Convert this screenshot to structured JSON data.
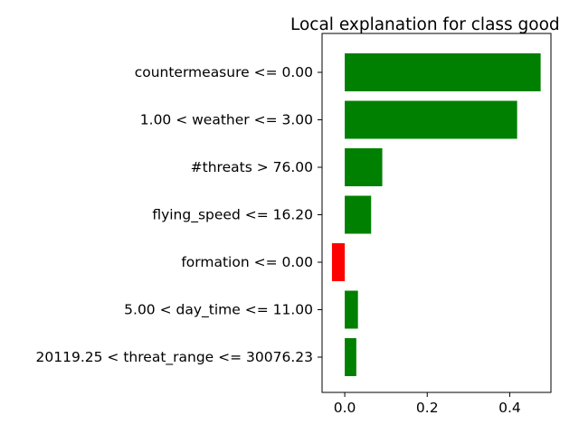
{
  "chart_data": {
    "type": "bar",
    "orientation": "horizontal",
    "title": "Local explanation for class good",
    "xlabel": "",
    "ylabel": "",
    "xlim": [
      -0.055,
      0.5
    ],
    "xticks": [
      0.0,
      0.2,
      0.4
    ],
    "xtick_labels": [
      "0.0",
      "0.2",
      "0.4"
    ],
    "grid": false,
    "colors": {
      "positive": "#008000",
      "negative": "#ff0000"
    },
    "categories": [
      "countermeasure <= 0.00",
      "1.00 < weather <= 3.00",
      "#threats > 76.00",
      "flying_speed <= 16.20",
      "formation <= 0.00",
      "5.00 < day_time <= 11.00",
      "20119.25 < threat_range <= 30076.23"
    ],
    "values": [
      0.475,
      0.418,
      0.091,
      0.064,
      -0.031,
      0.032,
      0.028
    ]
  }
}
